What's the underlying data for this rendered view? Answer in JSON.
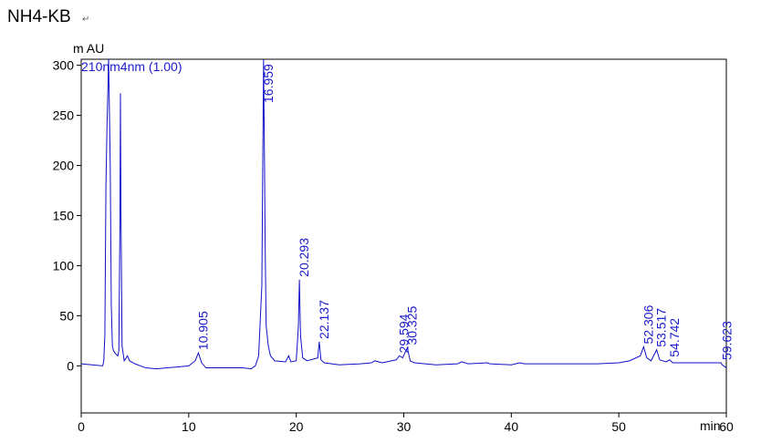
{
  "chart_data": {
    "type": "line",
    "title": "NH4-KB",
    "title_mark": "↵",
    "y_label": "m AU",
    "x_label": "min",
    "annotation": "210nm4nm (1.00)",
    "xlim": [
      0,
      60
    ],
    "xticks": [
      0,
      10,
      20,
      30,
      40,
      50,
      60
    ],
    "ylim": [
      -47,
      306
    ],
    "yticks": [
      0,
      50,
      100,
      150,
      200,
      250,
      300
    ],
    "series": [
      {
        "color": "#1010c8",
        "x": [
          0,
          1,
          2,
          2.1,
          2.2,
          2.3,
          2.4,
          2.55,
          2.7,
          2.8,
          2.9,
          3.0,
          3.2,
          3.4,
          3.5,
          3.6,
          3.65,
          3.7,
          3.8,
          4.0,
          4.3,
          4.5,
          5,
          6,
          7,
          8,
          9,
          10,
          10.6,
          10.9,
          11.2,
          11.6,
          13,
          15,
          15.8,
          16.2,
          16.5,
          16.8,
          16.959,
          17.05,
          17.1,
          17.2,
          17.4,
          17.6,
          18,
          19,
          19.3,
          19.5,
          20,
          20.2,
          20.293,
          20.4,
          20.6,
          21,
          22,
          22.137,
          22.3,
          22.6,
          24,
          26,
          27,
          27.3,
          28,
          29.3,
          29.594,
          29.9,
          30.325,
          30.6,
          31,
          33,
          35,
          35.4,
          36,
          37.8,
          38,
          40,
          40.8,
          41.2,
          44,
          48,
          50,
          51,
          52,
          52.306,
          52.6,
          53,
          53.517,
          53.8,
          54.4,
          54.742,
          55,
          57,
          59.5,
          59.623,
          60
        ],
        "values": [
          2,
          1,
          0,
          5,
          30,
          180,
          240,
          306,
          200,
          60,
          20,
          15,
          12,
          10,
          15,
          140,
          272,
          150,
          20,
          5,
          10,
          5,
          2,
          -2,
          -3,
          -2,
          -1,
          0,
          5,
          13,
          3,
          -2,
          -2,
          -2,
          -3,
          0,
          10,
          80,
          306,
          200,
          130,
          40,
          20,
          10,
          5,
          4,
          10,
          4,
          5,
          40,
          86,
          30,
          8,
          5,
          8,
          24,
          6,
          3,
          1,
          2,
          3,
          5,
          3,
          6,
          10,
          8,
          18,
          5,
          3,
          1,
          2,
          4,
          2,
          3,
          2,
          1,
          3,
          2,
          2,
          2,
          3,
          5,
          10,
          19,
          8,
          5,
          16,
          6,
          4,
          6,
          3,
          3,
          3,
          1,
          -2
        ]
      }
    ],
    "peaks": [
      10.905,
      16.959,
      20.293,
      22.137,
      29.594,
      30.325,
      52.306,
      53.517,
      54.742,
      59.623
    ]
  }
}
